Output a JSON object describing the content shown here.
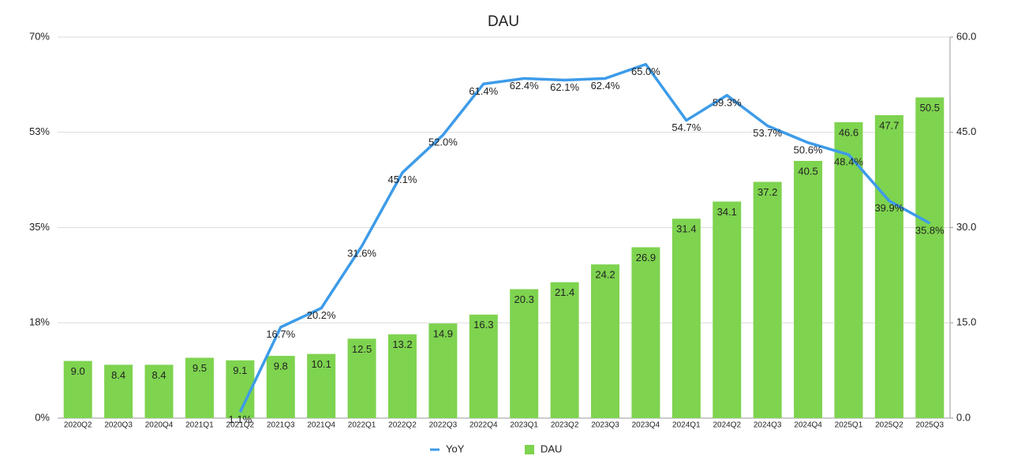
{
  "chart_data": {
    "type": "combo",
    "title": "DAU",
    "categories": [
      "2020Q2",
      "2020Q3",
      "2020Q4",
      "2021Q1",
      "2021Q2",
      "2021Q3",
      "2021Q4",
      "2022Q1",
      "2022Q2",
      "2022Q3",
      "2022Q4",
      "2023Q1",
      "2023Q2",
      "2023Q3",
      "2023Q4",
      "2024Q1",
      "2024Q2",
      "2024Q3",
      "2024Q4",
      "2025Q1",
      "2025Q2",
      "2025Q3"
    ],
    "ylim": [
      0,
      70
    ],
    "yticks": [
      {
        "value": 0,
        "label": "0%"
      },
      {
        "value": 17.5,
        "label": "18%"
      },
      {
        "value": 35,
        "label": "35%"
      },
      {
        "value": 52.5,
        "label": "53%"
      },
      {
        "value": 70,
        "label": "70%"
      }
    ],
    "y2lim": [
      0,
      60
    ],
    "y2ticks": [
      {
        "value": 0,
        "label": "0.0"
      },
      {
        "value": 15,
        "label": "15.0"
      },
      {
        "value": 30,
        "label": "30.0"
      },
      {
        "value": 45,
        "label": "45.0"
      },
      {
        "value": 60,
        "label": "60.0"
      }
    ],
    "grid": true,
    "legend": "bottom",
    "series": [
      {
        "name": "YoY",
        "type": "line",
        "axis": "y",
        "color": "#3d9be9",
        "values": [
          null,
          null,
          null,
          null,
          1.1,
          16.7,
          20.2,
          31.6,
          45.1,
          52.0,
          61.4,
          62.4,
          62.1,
          62.4,
          65.0,
          54.7,
          59.3,
          53.7,
          50.6,
          48.4,
          39.9,
          35.8
        ],
        "value_labels": [
          null,
          null,
          null,
          null,
          "1.1%",
          "16.7%",
          "20.2%",
          "31.6%",
          "45.1%",
          "52.0%",
          "61.4%",
          "62.4%",
          "62.1%",
          "62.4%",
          "65.0%",
          "54.7%",
          "59.3%",
          "53.7%",
          "50.6%",
          "48.4%",
          "39.9%",
          "35.8%"
        ]
      },
      {
        "name": "DAU",
        "type": "bar",
        "axis": "y2",
        "color": "#7ed34f",
        "values": [
          9.0,
          8.4,
          8.4,
          9.5,
          9.1,
          9.8,
          10.1,
          12.5,
          13.2,
          14.9,
          16.3,
          20.3,
          21.4,
          24.2,
          26.9,
          31.4,
          34.1,
          37.2,
          40.5,
          46.6,
          47.7,
          50.5
        ],
        "value_labels": [
          "9.0",
          "8.4",
          "8.4",
          "9.5",
          "9.1",
          "9.8",
          "10.1",
          "12.5",
          "13.2",
          "14.9",
          "16.3",
          "20.3",
          "21.4",
          "24.2",
          "26.9",
          "31.4",
          "34.1",
          "37.2",
          "40.5",
          "46.6",
          "47.7",
          "50.5"
        ]
      }
    ]
  }
}
